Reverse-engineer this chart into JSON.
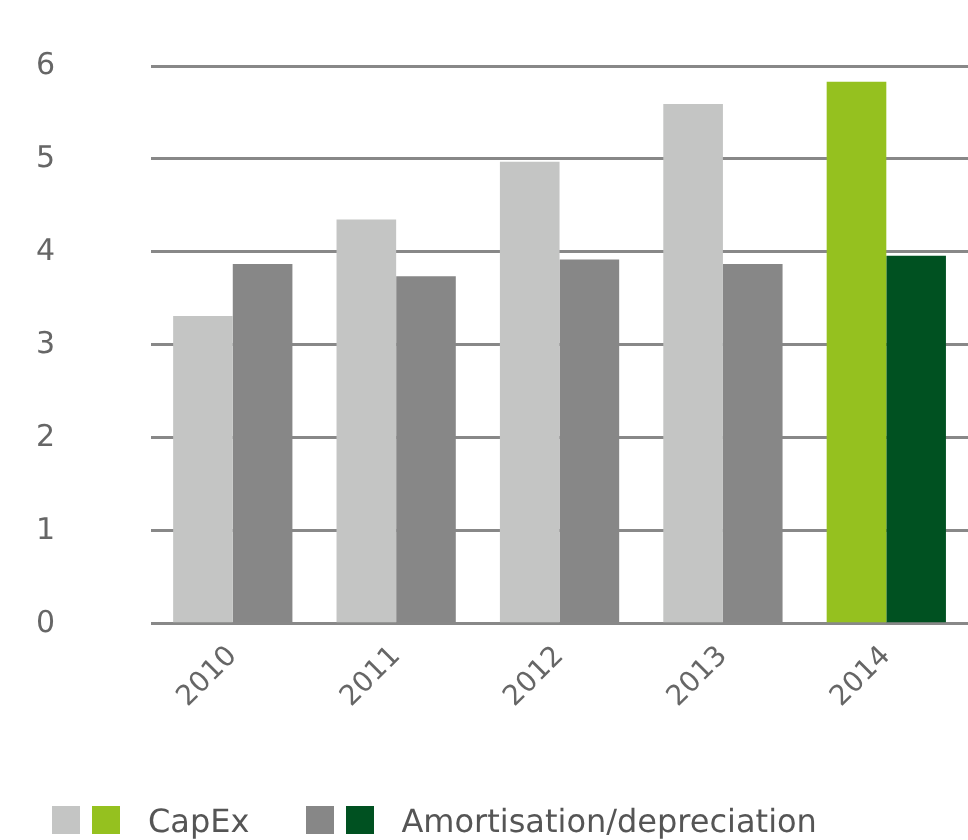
{
  "chart_data": {
    "type": "bar",
    "categories": [
      "2010",
      "2011",
      "2012",
      "2013",
      "2014"
    ],
    "series": [
      {
        "name": "CapEx",
        "colors": [
          "#c4c5c4",
          "#c4c5c4",
          "#c4c5c4",
          "#c4c5c4",
          "#95c11f"
        ],
        "values": [
          3.31,
          4.35,
          4.97,
          5.59,
          5.83
        ]
      },
      {
        "name": "Amortisation/depreciation",
        "colors": [
          "#878787",
          "#878787",
          "#878787",
          "#878787",
          "#005121"
        ],
        "values": [
          3.87,
          3.74,
          3.92,
          3.87,
          3.96
        ]
      }
    ],
    "ylim": [
      0,
      6
    ],
    "yticks": [
      0,
      1,
      2,
      3,
      4,
      5,
      6
    ],
    "grid": "y",
    "legend": "bottom"
  }
}
